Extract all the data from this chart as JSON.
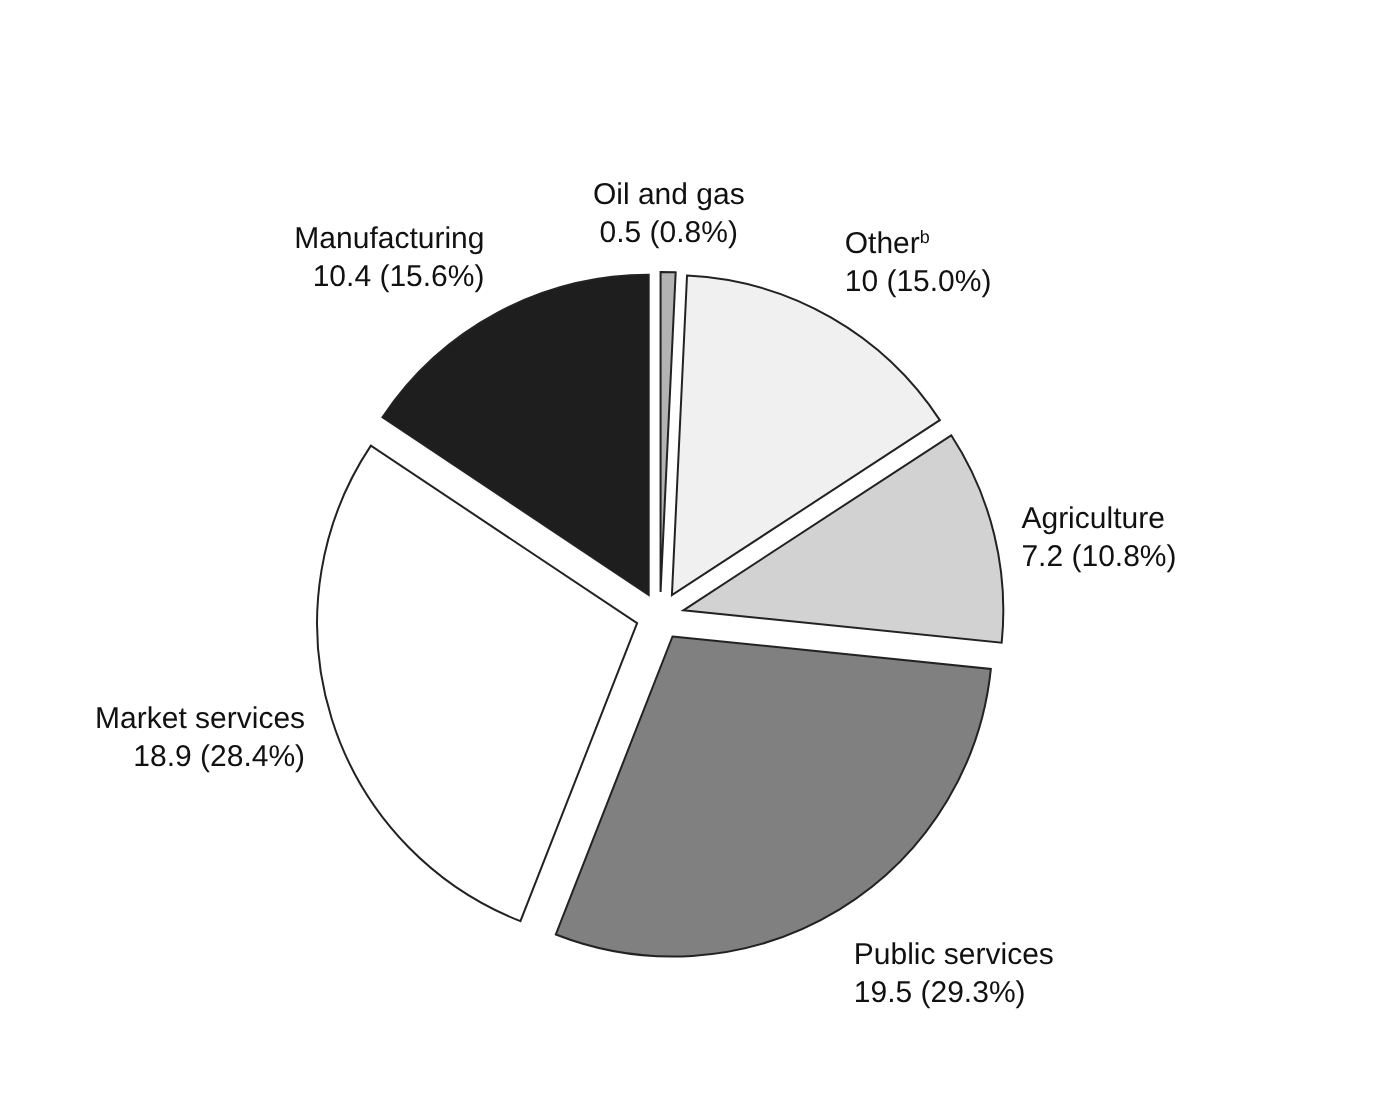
{
  "chart_data": {
    "type": "pie",
    "categories": [
      "Oil and gas",
      "Other$^{b}$",
      "Agriculture",
      "Public services",
      "Market services",
      "Manufacturing"
    ],
    "values": [
      0.5,
      10,
      7.2,
      19.5,
      18.9,
      10.4
    ],
    "value_labels": [
      "0.5 (0.8%)",
      "10 (15.0%)",
      "7.2 (10.8%)",
      "19.5 (29.3%)",
      "18.9 (28.4%)",
      "10.4 (15.6%)"
    ],
    "colors": [
      "#b3b3b3",
      "#f0f0f0",
      "#d2d2d2",
      "#808080",
      "#ffffff",
      "#1e1e1e"
    ]
  }
}
